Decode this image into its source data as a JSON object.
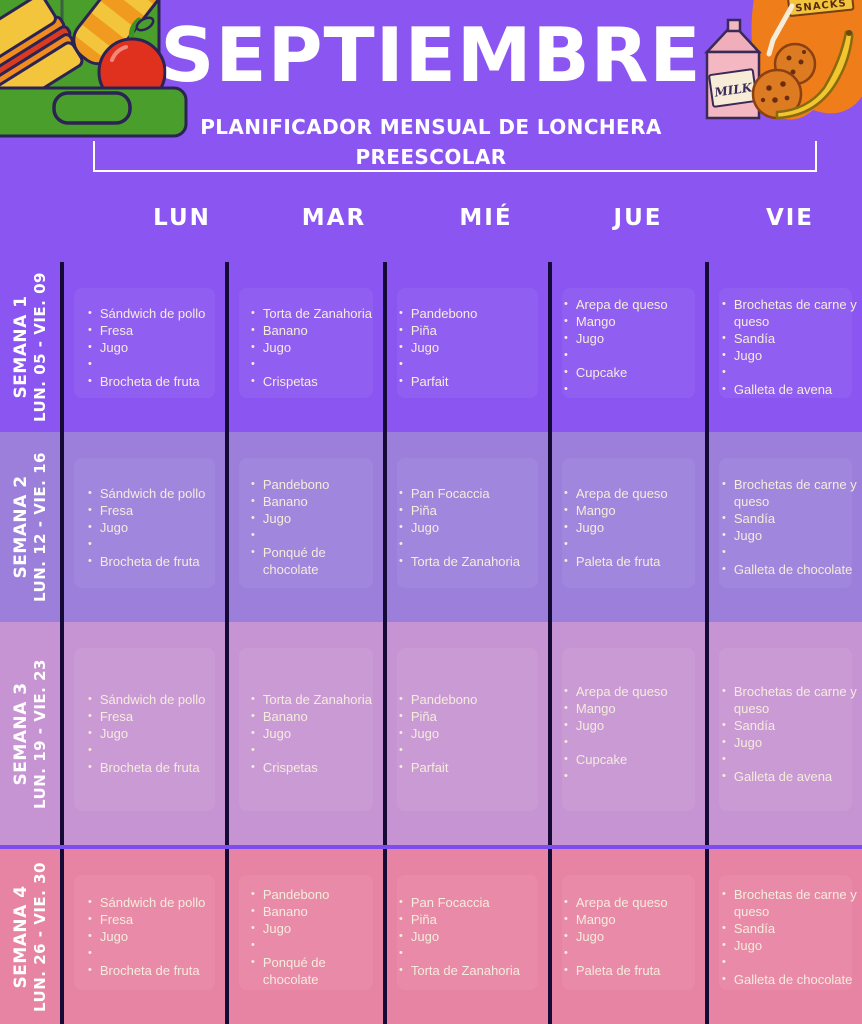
{
  "header": {
    "title": "SEPTIEMBRE",
    "subtitle_line1": "PLANIFICADOR MENSUAL DE LONCHERA",
    "subtitle_line2": "PREESCOLAR"
  },
  "days": [
    "LUN",
    "MAR",
    "MIÉ",
    "JUE",
    "VIE"
  ],
  "weeks": [
    {
      "name": "SEMANA 1",
      "range": "LUN. 05 - VIE. 09",
      "band_color": "#8a55f1",
      "menus": [
        [
          "Sándwich de pollo",
          "Fresa",
          "Jugo",
          "",
          "Brocheta de fruta"
        ],
        [
          "Torta de Zanahoria",
          "Banano",
          "Jugo",
          "",
          "Crispetas"
        ],
        [
          "Pandebono",
          "Piña",
          "Jugo",
          "",
          "Parfait"
        ],
        [
          "Arepa de queso",
          "Mango",
          "Jugo",
          "",
          "Cupcake",
          ""
        ],
        [
          "Brochetas de carne y\nqueso",
          "Sandía",
          "Jugo",
          "",
          "Galleta de avena"
        ]
      ]
    },
    {
      "name": "SEMANA 2",
      "range": "LUN. 12 - VIE. 16",
      "band_color": "#9b7fdb",
      "menus": [
        [
          "Sándwich de pollo",
          "Fresa",
          "Jugo",
          "",
          "Brocheta de fruta"
        ],
        [
          "Pandebono",
          "Banano",
          "Jugo",
          "",
          "Ponqué de chocolate"
        ],
        [
          "Pan Focaccia",
          "Piña",
          "Jugo",
          "",
          "Torta de Zanahoria"
        ],
        [
          "Arepa de queso",
          "Mango",
          "Jugo",
          "",
          "Paleta de fruta"
        ],
        [
          "Brochetas de carne y\nqueso",
          "Sandía",
          "Jugo",
          "",
          "Galleta de chocolate"
        ]
      ]
    },
    {
      "name": "SEMANA 3",
      "range": "LUN. 19 - VIE. 23",
      "band_color": "#c794d3",
      "menus": [
        [
          "Sándwich de pollo",
          "Fresa",
          "Jugo",
          "",
          "Brocheta de fruta"
        ],
        [
          "Torta de Zanahoria",
          "Banano",
          "Jugo",
          "",
          "Crispetas"
        ],
        [
          "Pandebono",
          "Piña",
          "Jugo",
          "",
          "Parfait"
        ],
        [
          "Arepa de queso",
          "Mango",
          "Jugo",
          "",
          "Cupcake",
          ""
        ],
        [
          "Brochetas de carne y\nqueso",
          "Sandía",
          "Jugo",
          "",
          "Galleta de avena"
        ]
      ]
    },
    {
      "name": "SEMANA 4",
      "range": "LUN. 26 - VIE. 30",
      "band_color": "#e884a3",
      "menus": [
        [
          "Sándwich de pollo",
          "Fresa",
          "Jugo",
          "",
          "Brocheta de fruta"
        ],
        [
          "Pandebono",
          "Banano",
          "Jugo",
          "",
          "Ponqué de chocolate"
        ],
        [
          "Pan Focaccia",
          "Piña",
          "Jugo",
          "",
          "Torta de Zanahoria"
        ],
        [
          "Arepa de queso",
          "Mango",
          "Jugo",
          "",
          "Paleta de fruta"
        ],
        [
          "Brochetas de carne y\nqueso",
          "Sandía",
          "Jugo",
          "",
          "Galleta de chocolate"
        ]
      ]
    }
  ],
  "illustrations": {
    "milk_label": "MILK",
    "snacks_label": "SNACKS"
  },
  "colors": {
    "background_purple": "#8a55f1",
    "week_band_colors": [
      "#8a55f1",
      "#9b7fdb",
      "#c794d3",
      "#e884a3"
    ],
    "divider_dark": "#150a35",
    "week4_top_line": "#7c4cf0",
    "list_text_cream": "#f4ecdc",
    "heading_white": "#ffffff"
  }
}
